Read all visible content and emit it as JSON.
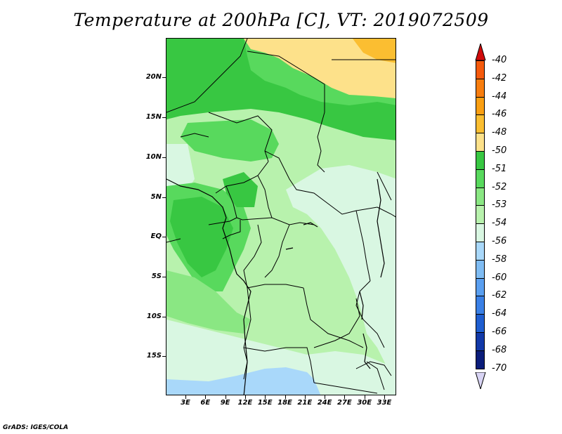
{
  "title": "Temperature at 200hPa [C], VT: 2019072509",
  "credit": "GrADS: IGES/COLA",
  "map": {
    "lat_labels": [
      "20N",
      "15N",
      "10N",
      "5N",
      "EQ",
      "5S",
      "10S",
      "15S"
    ],
    "lon_labels": [
      "3E",
      "6E",
      "9E",
      "12E",
      "15E",
      "18E",
      "21E",
      "24E",
      "27E",
      "30E",
      "33E"
    ],
    "region": "Central Africa"
  },
  "colorbar": {
    "labels": [
      "-40",
      "-42",
      "-44",
      "-46",
      "-48",
      "-50",
      "-51",
      "-52",
      "-53",
      "-54",
      "-56",
      "-58",
      "-60",
      "-62",
      "-64",
      "-66",
      "-68",
      "-70"
    ],
    "colors": [
      "#f0220a",
      "#f55a0c",
      "#f87d0e",
      "#fa9f12",
      "#fbbe31",
      "#fde18a",
      "#38c742",
      "#58d95d",
      "#8ae783",
      "#b8f2ad",
      "#d9f7e2",
      "#a9d8fa",
      "#7fbcf3",
      "#5a9ff0",
      "#3a80e6",
      "#1f5ed0",
      "#1239a8",
      "#0b1d7a"
    ],
    "top_arrow_color": "#d00a0a",
    "bottom_arrow_color": "#d8d4f4"
  }
}
